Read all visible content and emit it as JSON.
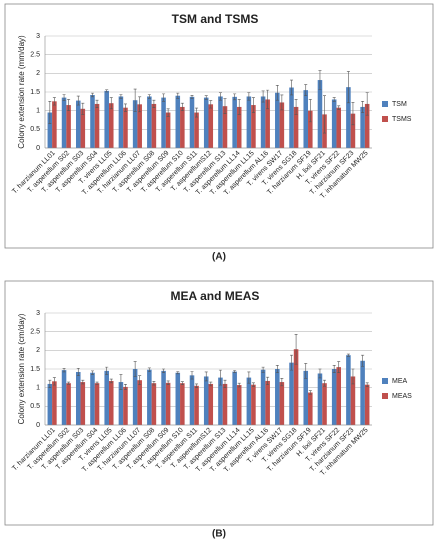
{
  "chart_data": [
    {
      "type": "bar",
      "title": "TSM and TSMS",
      "panel_label": "(A)",
      "y_label": "Colony extension rate (mm/day)",
      "categories": [
        "T. harzianum LL01",
        "T. asperellum S02",
        "T. asperellum S03",
        "T. asperellum S04",
        "T. virens LL05",
        "T. asperellum LL06",
        "T. harzianum LL07",
        "T. asperellum S08",
        "T. asperellum S09",
        "T. asperellum S10",
        "T. asperellum S11",
        "T. asperellumS12",
        "T. asperellum S13",
        "T. asperellum LL14",
        "T. asperellum LL15",
        "T. asperellum AL16",
        "T. virens SW17",
        "T. virens SG18",
        "T. harzianum SF19",
        "H. lixii SF21",
        "T. virens SF22",
        "T. harzianum SF23",
        "T. inhamatum MW25"
      ],
      "series": [
        {
          "name": "TSM",
          "color": "#4f81bd",
          "values": [
            0.95,
            1.35,
            1.27,
            1.42,
            1.53,
            1.38,
            1.28,
            1.38,
            1.35,
            1.4,
            1.37,
            1.35,
            1.38,
            1.37,
            1.38,
            1.38,
            1.48,
            1.62,
            1.55,
            1.82,
            1.3,
            1.63,
            1.1
          ],
          "errors": [
            0.3,
            0.08,
            0.12,
            0.05,
            0.03,
            0.05,
            0.3,
            0.05,
            0.1,
            0.07,
            0.04,
            0.05,
            0.1,
            0.08,
            0.1,
            0.15,
            0.2,
            0.2,
            0.15,
            0.25,
            0.05,
            0.42,
            0.15
          ]
        },
        {
          "name": "TSMS",
          "color": "#c0504d",
          "values": [
            1.25,
            1.15,
            1.05,
            1.18,
            1.2,
            1.08,
            1.17,
            1.18,
            0.95,
            1.1,
            0.95,
            1.17,
            1.12,
            1.1,
            1.15,
            1.3,
            1.22,
            1.1,
            1.0,
            0.9,
            1.08,
            0.92,
            1.18
          ],
          "errors": [
            0.1,
            0.15,
            0.15,
            0.1,
            0.15,
            0.1,
            0.2,
            0.1,
            0.1,
            0.1,
            0.12,
            0.1,
            0.2,
            0.2,
            0.2,
            0.25,
            0.2,
            0.2,
            0.3,
            0.5,
            0.05,
            0.3,
            0.3
          ]
        }
      ],
      "ylim": [
        0,
        3
      ],
      "yticks": [
        0,
        0.5,
        1,
        1.5,
        2,
        2.5,
        3
      ],
      "grid": true,
      "legend": "right"
    },
    {
      "type": "bar",
      "title": "MEA and MEAS",
      "panel_label": "(B)",
      "y_label": "Colony extension rate (cm/day)",
      "categories": [
        "T. harzianum LL01",
        "T. asperellum S02",
        "T. asperellum S03",
        "T. asperellum S04",
        "T. virens LL05",
        "T. asperellum LL06",
        "T. harzianum LL07",
        "T. asperellum S08",
        "T. asperellum S09",
        "T. asperellum S10",
        "T. asperellum S11",
        "T. asperellumS12",
        "T. asperellum S13",
        "T. asperellum LL14",
        "T. asperellum LL15",
        "T. asperellum AL16",
        "T. virens SW17",
        "T. virens SG18",
        "T. harzianum SF19",
        "H. lixii SF21",
        "T. virens SF22",
        "T. harzianum SF23",
        "T. inhamatum MW25"
      ],
      "series": [
        {
          "name": "MEA",
          "color": "#4f81bd",
          "values": [
            1.1,
            1.47,
            1.42,
            1.4,
            1.45,
            1.15,
            1.5,
            1.48,
            1.45,
            1.4,
            1.33,
            1.3,
            1.27,
            1.43,
            1.27,
            1.48,
            1.5,
            1.67,
            1.45,
            1.38,
            1.5,
            1.87,
            1.72
          ],
          "errors": [
            0.1,
            0.05,
            0.1,
            0.05,
            0.1,
            0.2,
            0.2,
            0.05,
            0.05,
            0.03,
            0.1,
            0.12,
            0.2,
            0.03,
            0.15,
            0.07,
            0.1,
            0.2,
            0.2,
            0.12,
            0.1,
            0.03,
            0.15
          ]
        },
        {
          "name": "MEAS",
          "color": "#c0504d",
          "values": [
            1.17,
            1.12,
            1.15,
            1.12,
            1.18,
            1.02,
            1.2,
            1.12,
            1.13,
            1.12,
            1.05,
            1.1,
            1.1,
            1.07,
            1.08,
            1.18,
            1.15,
            2.03,
            0.87,
            1.12,
            1.55,
            1.3,
            1.08
          ],
          "errors": [
            0.1,
            0.03,
            0.05,
            0.03,
            0.05,
            0.07,
            0.12,
            0.05,
            0.05,
            0.04,
            0.05,
            0.05,
            0.1,
            0.05,
            0.05,
            0.1,
            0.1,
            0.4,
            0.05,
            0.08,
            0.15,
            0.2,
            0.05
          ]
        }
      ],
      "ylim": [
        0,
        3
      ],
      "yticks": [
        0,
        0.5,
        1,
        1.5,
        2,
        2.5,
        3
      ],
      "grid": true,
      "legend": "right"
    }
  ]
}
